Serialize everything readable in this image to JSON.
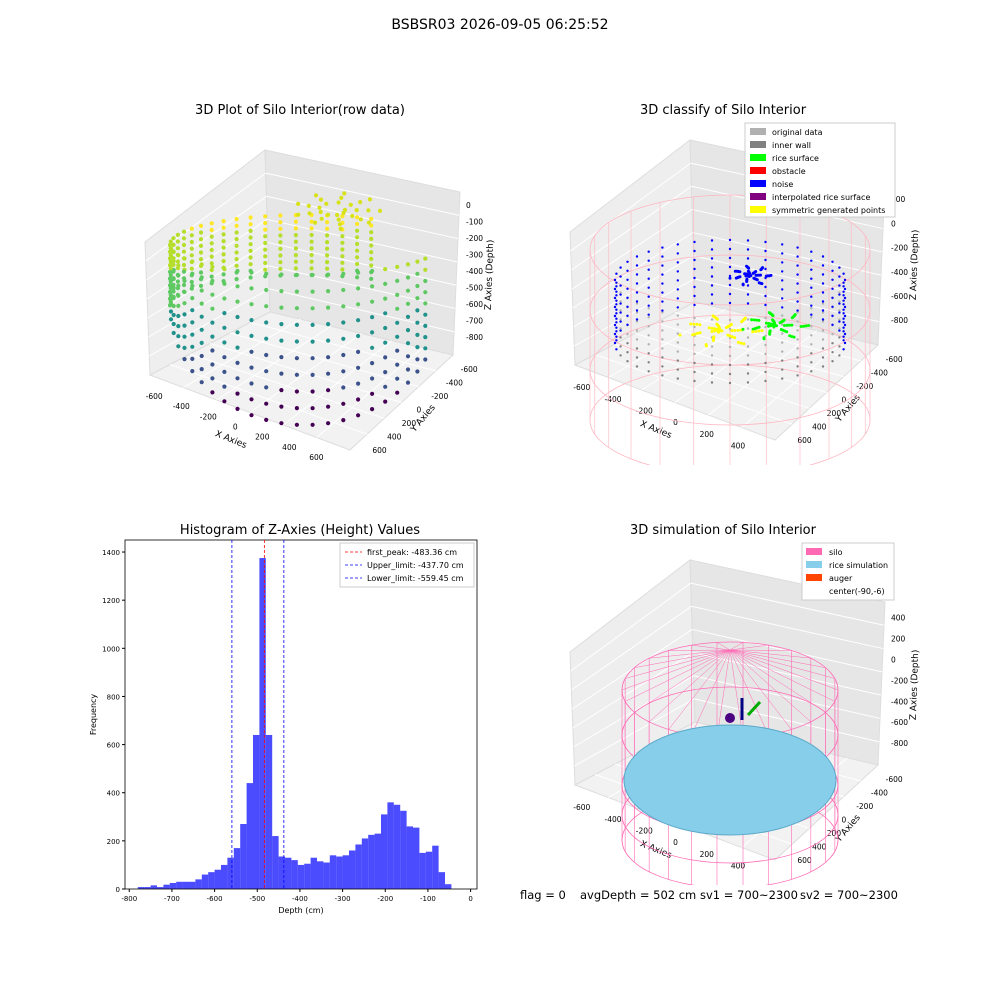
{
  "suptitle": "BSBSR03 2026-09-05 06:25:52",
  "panels": {
    "p1": {
      "title": "3D Plot of Silo Interior(row data)",
      "xlabel": "X Axies",
      "ylabel": "Y Axies",
      "zlabel": "Z Axies (Depth)",
      "x_ticks": [
        "-600",
        "-400",
        "-200",
        "0",
        "200",
        "400",
        "600"
      ],
      "y_ticks": [
        "600",
        "400",
        "200",
        "0",
        "-200",
        "-400",
        "-600"
      ],
      "z_ticks": [
        "0",
        "-100",
        "-200",
        "-300",
        "-400",
        "-500",
        "-600",
        "-700",
        "-800"
      ]
    },
    "p2": {
      "title": "3D classify of Silo Interior",
      "xlabel": "X Axies",
      "ylabel": "Y Axies",
      "zlabel": "Z Axies (Depth)",
      "x_ticks": [
        "-600",
        "-400",
        "-200",
        "0",
        "200",
        "400"
      ],
      "y_ticks": [
        "600",
        "400",
        "200",
        "0",
        "-200",
        "-400",
        "-600"
      ],
      "z_ticks": [
        "200",
        "0",
        "-200",
        "-400",
        "-600",
        "-800"
      ],
      "legend": [
        {
          "label": "original data",
          "color": "#b0b0b0"
        },
        {
          "label": "inner wall",
          "color": "#808080"
        },
        {
          "label": "rice surface",
          "color": "#00ff00"
        },
        {
          "label": "obstacle",
          "color": "#ff0000"
        },
        {
          "label": "noise",
          "color": "#0000ff"
        },
        {
          "label": "interpolated rice surface",
          "color": "#800080"
        },
        {
          "label": "symmetric generated points",
          "color": "#ffff00"
        }
      ]
    },
    "p4": {
      "title": "3D simulation of Silo Interior",
      "xlabel": "X Axies",
      "ylabel": "Y Axies",
      "zlabel": "Z Axies (Depth)",
      "x_ticks": [
        "-600",
        "-400",
        "-200",
        "0",
        "200",
        "400"
      ],
      "y_ticks": [
        "600",
        "400",
        "200",
        "0",
        "-200",
        "-400",
        "-600"
      ],
      "z_ticks": [
        "400",
        "200",
        "0",
        "-200",
        "-400",
        "-600",
        "-800"
      ],
      "legend": [
        {
          "label": "silo",
          "color": "#ff69b4"
        },
        {
          "label": "rice simulation",
          "color": "#87ceeb"
        },
        {
          "label": "auger",
          "color": "#ff4500"
        },
        {
          "label": "center(-90,-6)",
          "color": ""
        }
      ]
    }
  },
  "chart_data": [
    {
      "type": "bar",
      "title": "Histogram of Z-Axies (Height) Values",
      "xlabel": "Depth (cm)",
      "ylabel": "Frequency",
      "xlim": [
        -810,
        15
      ],
      "ylim": [
        0,
        1450
      ],
      "x_ticks": [
        -800,
        -700,
        -600,
        -500,
        -400,
        -300,
        -200,
        -100,
        0
      ],
      "y_ticks": [
        0,
        200,
        400,
        600,
        800,
        1000,
        1200,
        1400
      ],
      "bin_start": -780,
      "bin_width": 15,
      "values": [
        8,
        8,
        15,
        8,
        18,
        25,
        30,
        30,
        30,
        40,
        60,
        70,
        80,
        100,
        130,
        170,
        270,
        440,
        640,
        1375,
        640,
        220,
        135,
        130,
        120,
        100,
        105,
        130,
        115,
        110,
        140,
        135,
        140,
        160,
        185,
        210,
        225,
        230,
        310,
        360,
        350,
        325,
        260,
        255,
        150,
        155,
        180,
        70,
        20
      ],
      "bar_color": "#0000ff",
      "grid": false,
      "legend_position": "top-right",
      "vlines": [
        {
          "label": "first_peak: -483.36 cm",
          "x": -483.36,
          "color": "#ff0000"
        },
        {
          "label": "Upper_limit: -437.70 cm",
          "x": -437.7,
          "color": "#0000ff"
        },
        {
          "label": "Lower_limit: -559.45 cm",
          "x": -559.45,
          "color": "#0000ff"
        }
      ]
    }
  ],
  "footer": {
    "flag": "flag = 0",
    "avg": "avgDepth = 502 cm",
    "sv1": "sv1 = 700~2300",
    "sv2": "sv2 = 700~2300"
  }
}
